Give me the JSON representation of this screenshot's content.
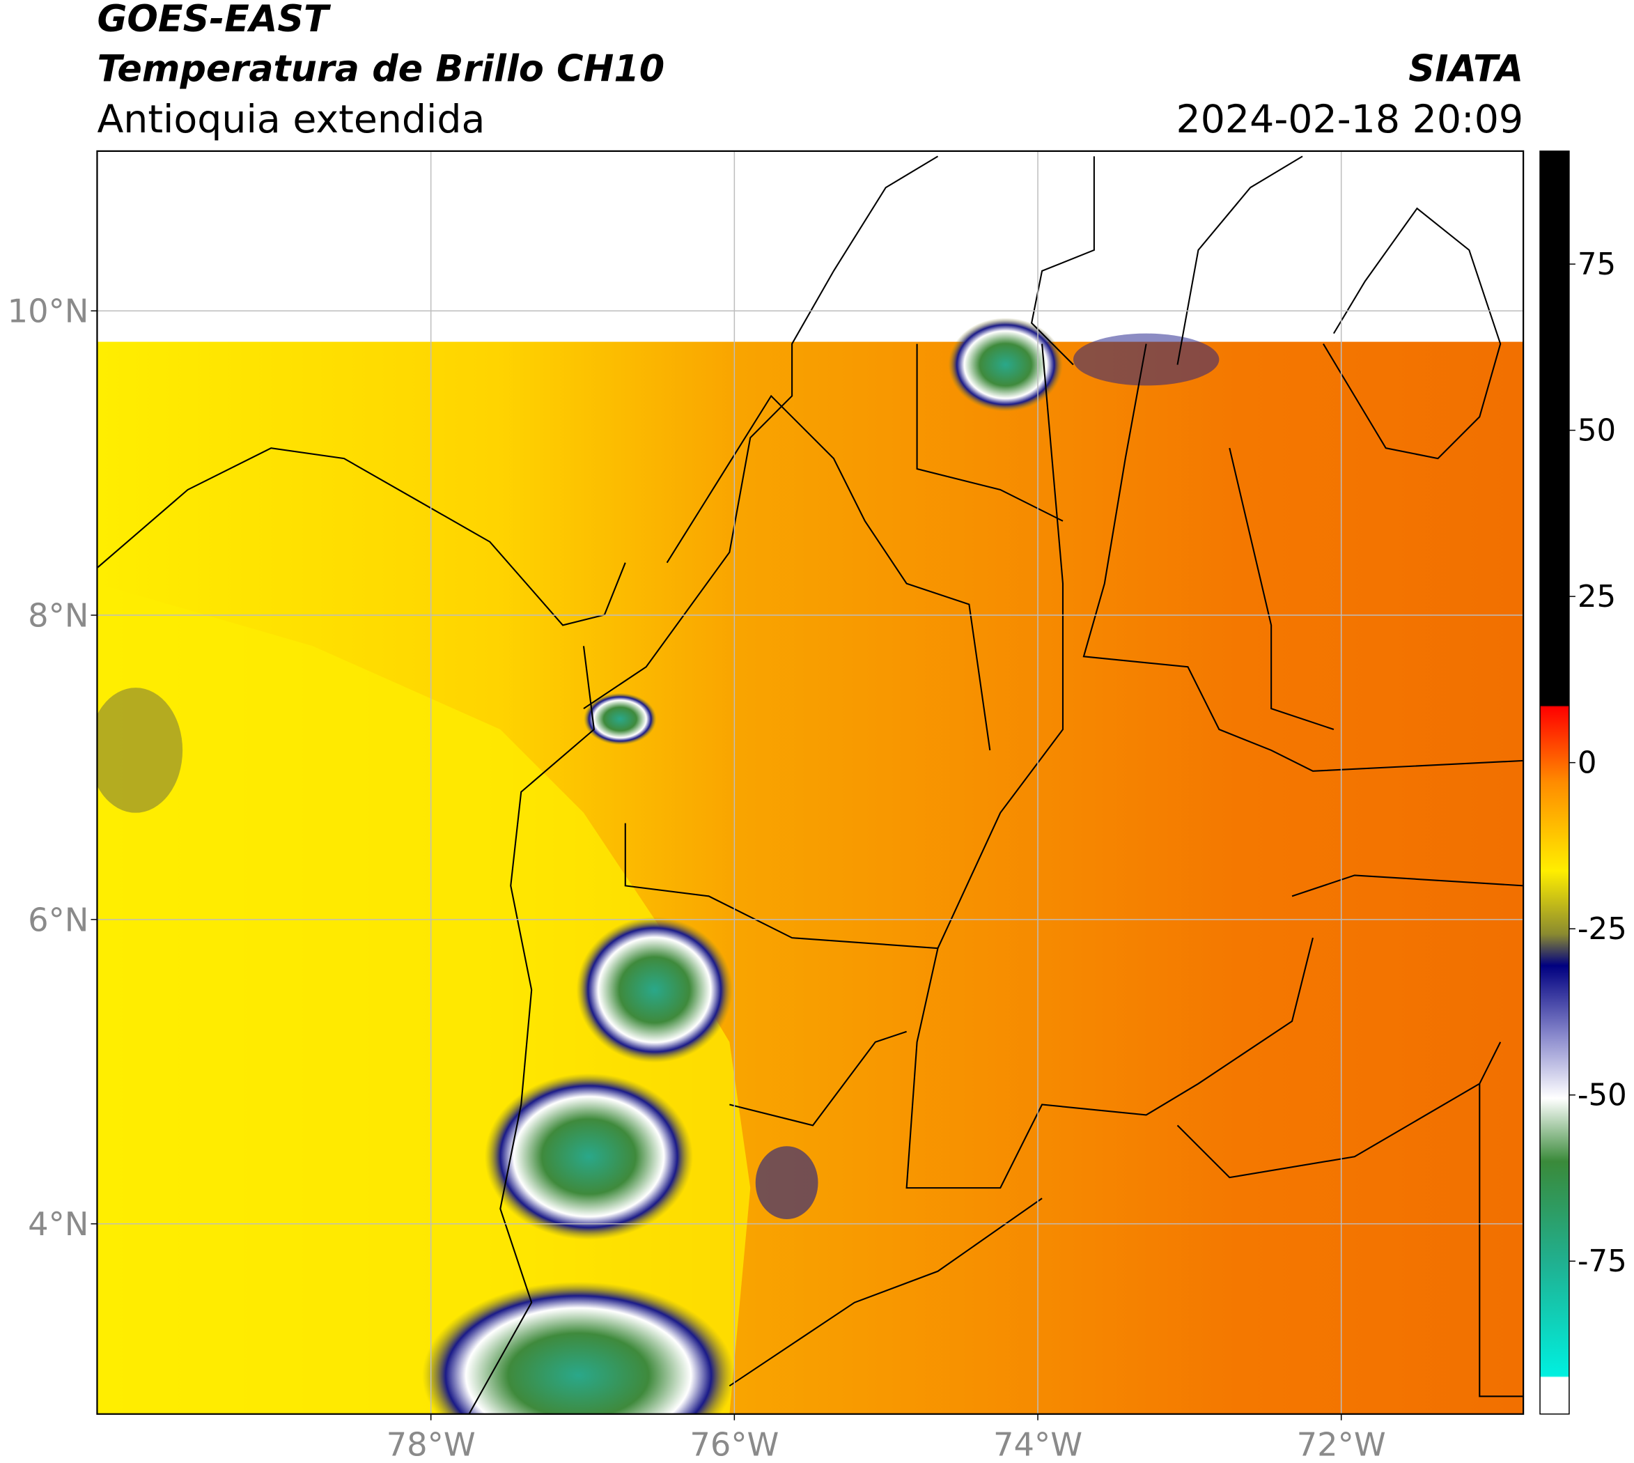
{
  "header": {
    "title": "GOES-EAST",
    "subtitle": "Temperatura de Brillo CH10",
    "region": "Antioquia extendida",
    "source": "SIATA",
    "timestamp": "2024-02-18 20:09"
  },
  "map": {
    "xlim": [
      -80.2,
      -70.8
    ],
    "ylim": [
      2.75,
      11.05
    ],
    "xticks": [
      {
        "value": -78,
        "label": "78°W"
      },
      {
        "value": -76,
        "label": "76°W"
      },
      {
        "value": -74,
        "label": "74°W"
      },
      {
        "value": -72,
        "label": "72°W"
      }
    ],
    "yticks": [
      {
        "value": 4,
        "label": "4°N"
      },
      {
        "value": 6,
        "label": "6°N"
      },
      {
        "value": 8,
        "label": "8°N"
      },
      {
        "value": 10,
        "label": "10°N"
      }
    ],
    "grid": true
  },
  "colorbar": {
    "lim": [
      -98,
      92
    ],
    "ticks": [
      -75,
      -50,
      -25,
      0,
      25,
      50,
      75
    ]
  }
}
